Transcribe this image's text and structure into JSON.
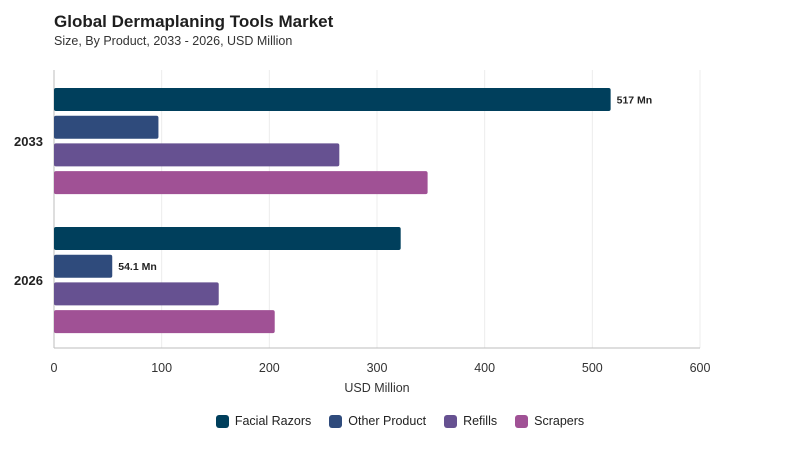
{
  "header": {
    "title": "Global Dermaplaning Tools Market",
    "subtitle": "Size, By Product, 2033 - 2026, USD Million"
  },
  "chart_data": {
    "type": "bar",
    "orientation": "horizontal",
    "categories": [
      "2033",
      "2026"
    ],
    "series": [
      {
        "name": "Facial Razors",
        "color": "#003f5c",
        "values": [
          517,
          322
        ]
      },
      {
        "name": "Other Product",
        "color": "#2f4b7c",
        "values": [
          97,
          54.1
        ]
      },
      {
        "name": "Refills",
        "color": "#665191",
        "values": [
          265,
          153
        ]
      },
      {
        "name": "Scrapers",
        "color": "#a05195",
        "values": [
          347,
          205
        ]
      }
    ],
    "data_labels": [
      {
        "category": "2033",
        "series": "Facial Razors",
        "text": "517 Mn"
      },
      {
        "category": "2026",
        "series": "Other Product",
        "text": "54.1 Mn"
      }
    ],
    "xlabel": "USD Million",
    "ylabel": "",
    "xlim": [
      0,
      600
    ],
    "xticks": [
      0,
      100,
      200,
      300,
      400,
      500,
      600
    ],
    "grid": true,
    "legend": "bottom-center"
  }
}
